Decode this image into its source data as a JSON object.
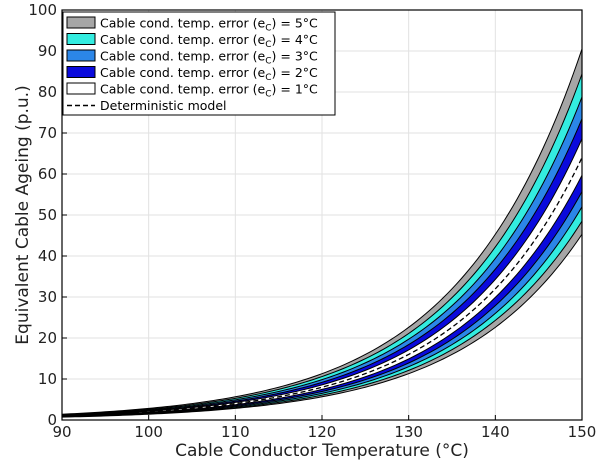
{
  "chart_data": {
    "type": "area",
    "xlabel": "Cable Conductor Temperature (°C)",
    "ylabel": "Equivalent Cable Ageing (p.u.)",
    "xlim": [
      90,
      150
    ],
    "ylim": [
      0,
      100
    ],
    "xticks": [
      "90",
      "100",
      "110",
      "120",
      "130",
      "140",
      "150"
    ],
    "yticks": [
      "0",
      "10",
      "20",
      "30",
      "40",
      "50",
      "60",
      "70",
      "80",
      "90",
      "100"
    ],
    "grid": true,
    "legend_position": "top-left",
    "deterministic_model": {
      "name": "Deterministic model",
      "x": [
        90,
        100,
        110,
        120,
        130,
        140,
        150
      ],
      "y": [
        1.0,
        2.0,
        4.0,
        8.0,
        16.0,
        32.0,
        64.0
      ]
    },
    "series": [
      {
        "name": "Cable cond. temp. error (e",
        "sub": "C",
        "suffix": ") = 5°C",
        "error": 5,
        "color": "#a6a6a6",
        "lower": [
          0.7,
          1.41,
          2.83,
          5.66,
          11.3,
          22.6,
          45.3
        ],
        "upper": [
          1.41,
          2.83,
          5.66,
          11.3,
          22.6,
          45.3,
          90.5
        ]
      },
      {
        "name": "Cable cond. temp. error (e",
        "sub": "C",
        "suffix": ") = 4°C",
        "error": 4,
        "color": "#33ece0",
        "lower": [
          0.76,
          1.52,
          3.03,
          6.06,
          12.1,
          24.3,
          48.5
        ],
        "upper": [
          1.32,
          2.64,
          5.28,
          10.6,
          21.1,
          42.2,
          84.4
        ]
      },
      {
        "name": "Cable cond. temp. error (e",
        "sub": "C",
        "suffix": ") = 3°C",
        "error": 3,
        "color": "#2b86e8",
        "lower": [
          0.81,
          1.62,
          3.25,
          6.5,
          13.0,
          26.0,
          52.0
        ],
        "upper": [
          1.23,
          2.46,
          4.92,
          9.85,
          19.7,
          39.4,
          78.8
        ]
      },
      {
        "name": "Cable cond. temp. error (e",
        "sub": "C",
        "suffix": ") = 2°C",
        "error": 2,
        "color": "#0a0adc",
        "lower": [
          0.87,
          1.74,
          3.48,
          6.96,
          13.9,
          27.9,
          55.7
        ],
        "upper": [
          1.15,
          2.3,
          4.59,
          9.19,
          18.4,
          36.8,
          73.5
        ]
      },
      {
        "name": "Cable cond. temp. error (e",
        "sub": "C",
        "suffix": ") = 1°C",
        "error": 1,
        "color": "#ffffff",
        "lower": [
          0.93,
          1.87,
          3.73,
          7.46,
          14.9,
          29.9,
          59.7
        ],
        "upper": [
          1.07,
          2.14,
          4.29,
          8.57,
          17.1,
          34.3,
          68.6
        ]
      }
    ]
  }
}
